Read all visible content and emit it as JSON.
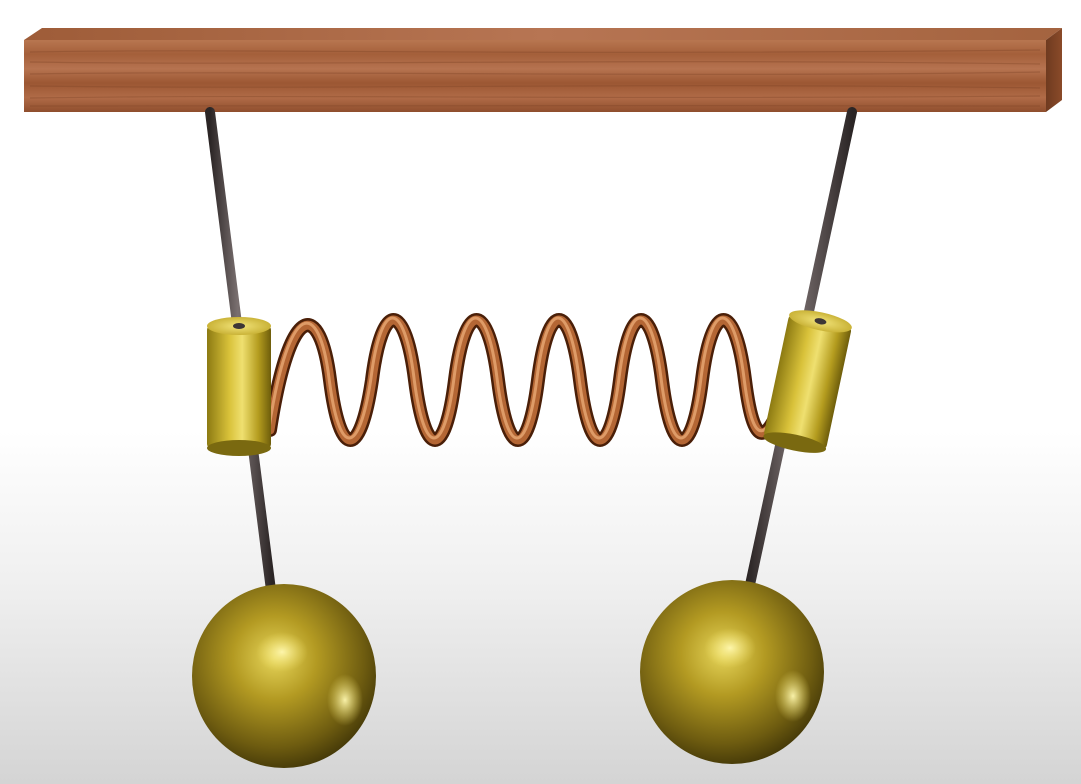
{
  "scene": {
    "description_visible_text": "",
    "colors": {
      "background_top": "#ffffff",
      "background_bottom": "#d9d9d9",
      "wood_light": "#b5724a",
      "wood_dark": "#7e4427",
      "rod": "#3d3636",
      "brass": "#c9b12b",
      "brass_dark": "#6b5a0c",
      "spring_copper": "#b86a36",
      "spring_dark": "#5a2a10"
    },
    "objects": [
      {
        "id": "beam",
        "icon": "wooden-beam"
      },
      {
        "id": "left-pendulum",
        "icon": "pendulum"
      },
      {
        "id": "right-pendulum",
        "icon": "pendulum"
      },
      {
        "id": "spring",
        "icon": "coil-spring"
      }
    ]
  }
}
